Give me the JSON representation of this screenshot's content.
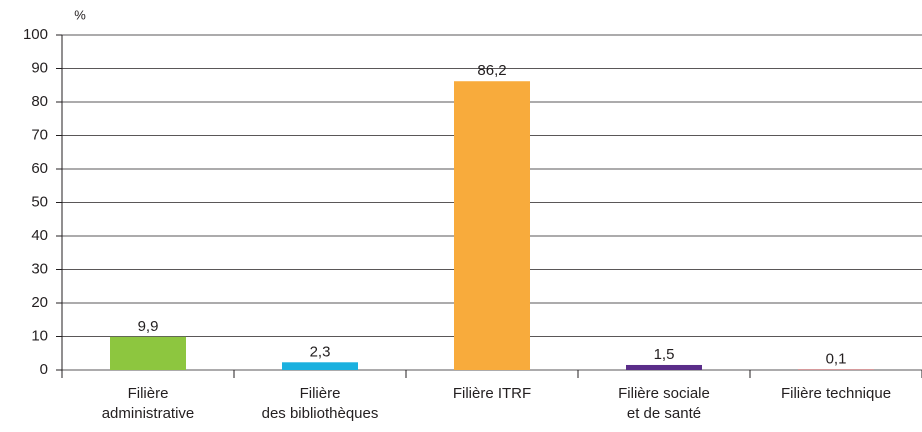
{
  "chart_data": {
    "type": "bar",
    "y_unit": "%",
    "categories": [
      [
        "Filière",
        "administrative"
      ],
      [
        "Filière",
        "des bibliothèques"
      ],
      [
        "Filière ITRF"
      ],
      [
        "Filière sociale",
        "et de santé"
      ],
      [
        "Filière technique"
      ]
    ],
    "values": [
      9.9,
      2.3,
      86.2,
      1.5,
      0.1
    ],
    "value_labels": [
      "9,9",
      "2,3",
      "86,2",
      "1,5",
      "0,1"
    ],
    "colors": [
      "#8dc63f",
      "#1ab0df",
      "#f8ab3c",
      "#5a2d89",
      "#d8262b"
    ],
    "ylim": [
      0,
      100
    ],
    "yticks": [
      0,
      10,
      20,
      30,
      40,
      50,
      60,
      70,
      80,
      90,
      100
    ],
    "grid": true
  }
}
